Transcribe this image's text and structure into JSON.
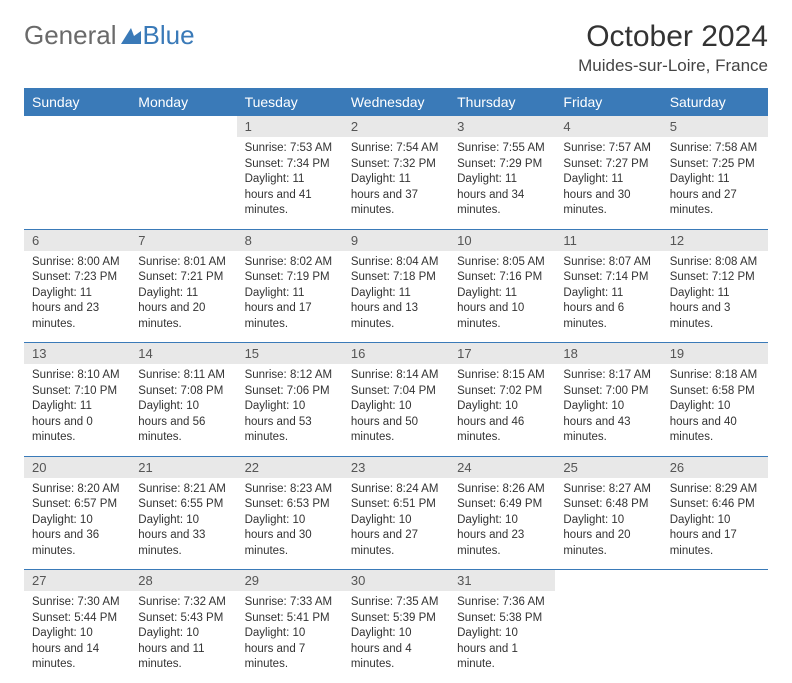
{
  "logo": {
    "text1": "General",
    "text2": "Blue"
  },
  "title": "October 2024",
  "location": "Muides-sur-Loire, France",
  "colors": {
    "header_bg": "#3a7ab8",
    "header_text": "#ffffff",
    "daynum_bg": "#e8e8e8",
    "daynum_text": "#555555",
    "cell_bg": "#ffffff",
    "row_divider": "#3a7ab8"
  },
  "dayNames": [
    "Sunday",
    "Monday",
    "Tuesday",
    "Wednesday",
    "Thursday",
    "Friday",
    "Saturday"
  ],
  "weeks": [
    [
      null,
      null,
      {
        "n": "1",
        "sr": "Sunrise: 7:53 AM",
        "ss": "Sunset: 7:34 PM",
        "dl": "Daylight: 11 hours and 41 minutes."
      },
      {
        "n": "2",
        "sr": "Sunrise: 7:54 AM",
        "ss": "Sunset: 7:32 PM",
        "dl": "Daylight: 11 hours and 37 minutes."
      },
      {
        "n": "3",
        "sr": "Sunrise: 7:55 AM",
        "ss": "Sunset: 7:29 PM",
        "dl": "Daylight: 11 hours and 34 minutes."
      },
      {
        "n": "4",
        "sr": "Sunrise: 7:57 AM",
        "ss": "Sunset: 7:27 PM",
        "dl": "Daylight: 11 hours and 30 minutes."
      },
      {
        "n": "5",
        "sr": "Sunrise: 7:58 AM",
        "ss": "Sunset: 7:25 PM",
        "dl": "Daylight: 11 hours and 27 minutes."
      }
    ],
    [
      {
        "n": "6",
        "sr": "Sunrise: 8:00 AM",
        "ss": "Sunset: 7:23 PM",
        "dl": "Daylight: 11 hours and 23 minutes."
      },
      {
        "n": "7",
        "sr": "Sunrise: 8:01 AM",
        "ss": "Sunset: 7:21 PM",
        "dl": "Daylight: 11 hours and 20 minutes."
      },
      {
        "n": "8",
        "sr": "Sunrise: 8:02 AM",
        "ss": "Sunset: 7:19 PM",
        "dl": "Daylight: 11 hours and 17 minutes."
      },
      {
        "n": "9",
        "sr": "Sunrise: 8:04 AM",
        "ss": "Sunset: 7:18 PM",
        "dl": "Daylight: 11 hours and 13 minutes."
      },
      {
        "n": "10",
        "sr": "Sunrise: 8:05 AM",
        "ss": "Sunset: 7:16 PM",
        "dl": "Daylight: 11 hours and 10 minutes."
      },
      {
        "n": "11",
        "sr": "Sunrise: 8:07 AM",
        "ss": "Sunset: 7:14 PM",
        "dl": "Daylight: 11 hours and 6 minutes."
      },
      {
        "n": "12",
        "sr": "Sunrise: 8:08 AM",
        "ss": "Sunset: 7:12 PM",
        "dl": "Daylight: 11 hours and 3 minutes."
      }
    ],
    [
      {
        "n": "13",
        "sr": "Sunrise: 8:10 AM",
        "ss": "Sunset: 7:10 PM",
        "dl": "Daylight: 11 hours and 0 minutes."
      },
      {
        "n": "14",
        "sr": "Sunrise: 8:11 AM",
        "ss": "Sunset: 7:08 PM",
        "dl": "Daylight: 10 hours and 56 minutes."
      },
      {
        "n": "15",
        "sr": "Sunrise: 8:12 AM",
        "ss": "Sunset: 7:06 PM",
        "dl": "Daylight: 10 hours and 53 minutes."
      },
      {
        "n": "16",
        "sr": "Sunrise: 8:14 AM",
        "ss": "Sunset: 7:04 PM",
        "dl": "Daylight: 10 hours and 50 minutes."
      },
      {
        "n": "17",
        "sr": "Sunrise: 8:15 AM",
        "ss": "Sunset: 7:02 PM",
        "dl": "Daylight: 10 hours and 46 minutes."
      },
      {
        "n": "18",
        "sr": "Sunrise: 8:17 AM",
        "ss": "Sunset: 7:00 PM",
        "dl": "Daylight: 10 hours and 43 minutes."
      },
      {
        "n": "19",
        "sr": "Sunrise: 8:18 AM",
        "ss": "Sunset: 6:58 PM",
        "dl": "Daylight: 10 hours and 40 minutes."
      }
    ],
    [
      {
        "n": "20",
        "sr": "Sunrise: 8:20 AM",
        "ss": "Sunset: 6:57 PM",
        "dl": "Daylight: 10 hours and 36 minutes."
      },
      {
        "n": "21",
        "sr": "Sunrise: 8:21 AM",
        "ss": "Sunset: 6:55 PM",
        "dl": "Daylight: 10 hours and 33 minutes."
      },
      {
        "n": "22",
        "sr": "Sunrise: 8:23 AM",
        "ss": "Sunset: 6:53 PM",
        "dl": "Daylight: 10 hours and 30 minutes."
      },
      {
        "n": "23",
        "sr": "Sunrise: 8:24 AM",
        "ss": "Sunset: 6:51 PM",
        "dl": "Daylight: 10 hours and 27 minutes."
      },
      {
        "n": "24",
        "sr": "Sunrise: 8:26 AM",
        "ss": "Sunset: 6:49 PM",
        "dl": "Daylight: 10 hours and 23 minutes."
      },
      {
        "n": "25",
        "sr": "Sunrise: 8:27 AM",
        "ss": "Sunset: 6:48 PM",
        "dl": "Daylight: 10 hours and 20 minutes."
      },
      {
        "n": "26",
        "sr": "Sunrise: 8:29 AM",
        "ss": "Sunset: 6:46 PM",
        "dl": "Daylight: 10 hours and 17 minutes."
      }
    ],
    [
      {
        "n": "27",
        "sr": "Sunrise: 7:30 AM",
        "ss": "Sunset: 5:44 PM",
        "dl": "Daylight: 10 hours and 14 minutes."
      },
      {
        "n": "28",
        "sr": "Sunrise: 7:32 AM",
        "ss": "Sunset: 5:43 PM",
        "dl": "Daylight: 10 hours and 11 minutes."
      },
      {
        "n": "29",
        "sr": "Sunrise: 7:33 AM",
        "ss": "Sunset: 5:41 PM",
        "dl": "Daylight: 10 hours and 7 minutes."
      },
      {
        "n": "30",
        "sr": "Sunrise: 7:35 AM",
        "ss": "Sunset: 5:39 PM",
        "dl": "Daylight: 10 hours and 4 minutes."
      },
      {
        "n": "31",
        "sr": "Sunrise: 7:36 AM",
        "ss": "Sunset: 5:38 PM",
        "dl": "Daylight: 10 hours and 1 minute."
      },
      null,
      null
    ]
  ]
}
